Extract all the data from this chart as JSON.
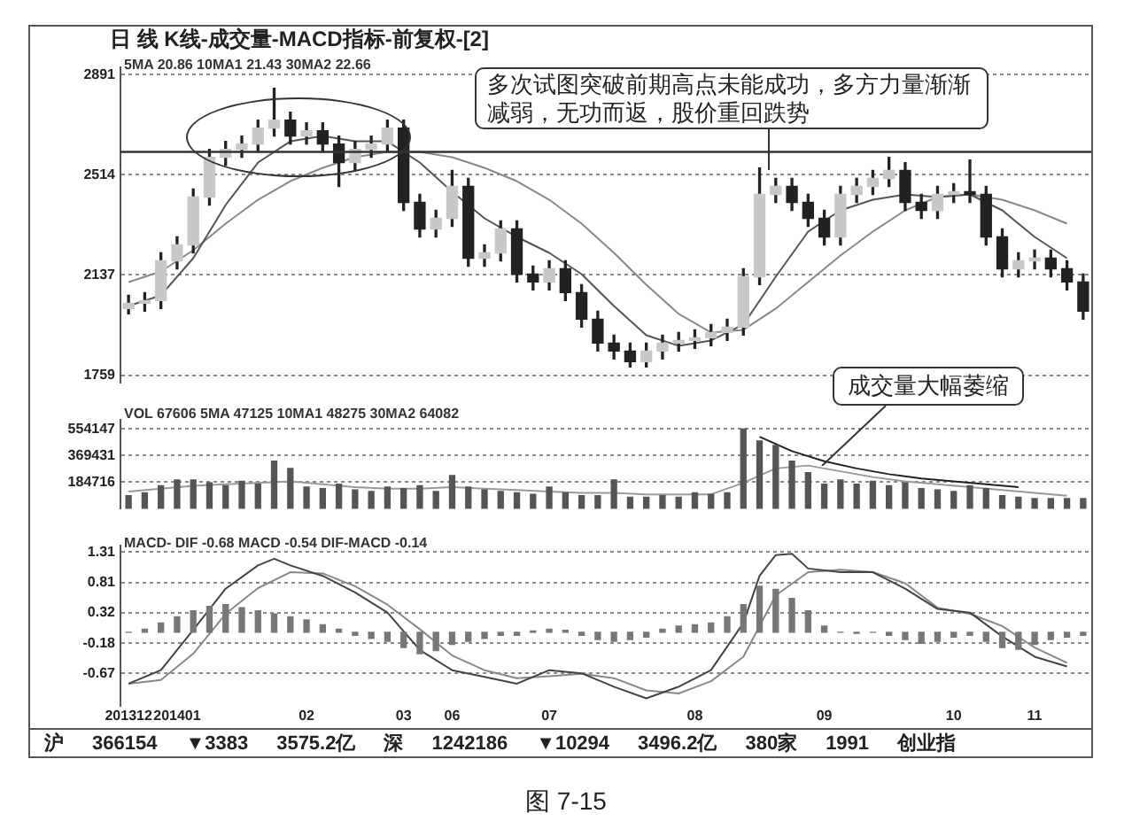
{
  "chart_data": [
    {
      "type": "candlestick",
      "title": "日 线 K线-成交量-MACD指标-前复权-[2]",
      "subtitle": "5MA 20.86 10MA1 21.43 30MA2 22.66",
      "categories": [
        "201312",
        null,
        null,
        "201401",
        null,
        null,
        null,
        null,
        null,
        null,
        null,
        "02",
        null,
        null,
        null,
        null,
        null,
        "03",
        null,
        null,
        "06",
        null,
        null,
        null,
        null,
        null,
        "07",
        null,
        null,
        null,
        null,
        null,
        null,
        null,
        null,
        "08",
        null,
        null,
        null,
        null,
        null,
        null,
        null,
        "09",
        null,
        null,
        null,
        null,
        null,
        null,
        null,
        "10",
        null,
        null,
        null,
        null,
        "11",
        null,
        null,
        null
      ],
      "ohlc": [
        [
          2010,
          2060,
          1990,
          2030
        ],
        [
          2030,
          2070,
          2000,
          2040
        ],
        [
          2040,
          2220,
          2010,
          2190
        ],
        [
          2190,
          2280,
          2160,
          2250
        ],
        [
          2250,
          2460,
          2220,
          2430
        ],
        [
          2430,
          2610,
          2400,
          2580
        ],
        [
          2580,
          2640,
          2550,
          2610
        ],
        [
          2610,
          2660,
          2580,
          2630
        ],
        [
          2630,
          2720,
          2600,
          2690
        ],
        [
          2690,
          2840,
          2660,
          2720
        ],
        [
          2720,
          2750,
          2630,
          2660
        ],
        [
          2660,
          2710,
          2630,
          2680
        ],
        [
          2680,
          2710,
          2600,
          2630
        ],
        [
          2630,
          2660,
          2470,
          2560
        ],
        [
          2560,
          2640,
          2530,
          2610
        ],
        [
          2610,
          2660,
          2580,
          2630
        ],
        [
          2630,
          2720,
          2600,
          2690
        ],
        [
          2690,
          2720,
          2380,
          2410
        ],
        [
          2410,
          2440,
          2280,
          2310
        ],
        [
          2310,
          2380,
          2280,
          2350
        ],
        [
          2350,
          2530,
          2320,
          2470
        ],
        [
          2470,
          2500,
          2170,
          2200
        ],
        [
          2200,
          2250,
          2170,
          2220
        ],
        [
          2220,
          2340,
          2190,
          2310
        ],
        [
          2310,
          2340,
          2110,
          2140
        ],
        [
          2140,
          2170,
          2080,
          2110
        ],
        [
          2110,
          2190,
          2080,
          2160
        ],
        [
          2160,
          2190,
          2040,
          2070
        ],
        [
          2070,
          2100,
          1940,
          1970
        ],
        [
          1970,
          2000,
          1850,
          1880
        ],
        [
          1880,
          1910,
          1820,
          1850
        ],
        [
          1850,
          1880,
          1790,
          1810
        ],
        [
          1810,
          1880,
          1790,
          1850
        ],
        [
          1850,
          1910,
          1820,
          1880
        ],
        [
          1880,
          1920,
          1850,
          1890
        ],
        [
          1890,
          1930,
          1860,
          1900
        ],
        [
          1900,
          1950,
          1870,
          1920
        ],
        [
          1920,
          1970,
          1890,
          1940
        ],
        [
          1940,
          2160,
          1910,
          2130
        ],
        [
          2130,
          2540,
          2100,
          2440
        ],
        [
          2440,
          2500,
          2410,
          2470
        ],
        [
          2470,
          2500,
          2380,
          2410
        ],
        [
          2410,
          2440,
          2320,
          2350
        ],
        [
          2350,
          2380,
          2250,
          2280
        ],
        [
          2280,
          2470,
          2250,
          2440
        ],
        [
          2440,
          2500,
          2410,
          2470
        ],
        [
          2470,
          2530,
          2440,
          2500
        ],
        [
          2500,
          2580,
          2470,
          2530
        ],
        [
          2530,
          2560,
          2380,
          2410
        ],
        [
          2410,
          2440,
          2350,
          2380
        ],
        [
          2380,
          2470,
          2350,
          2440
        ],
        [
          2440,
          2480,
          2410,
          2450
        ],
        [
          2450,
          2570,
          2410,
          2440
        ],
        [
          2440,
          2470,
          2250,
          2280
        ],
        [
          2280,
          2310,
          2130,
          2160
        ],
        [
          2160,
          2220,
          2130,
          2190
        ],
        [
          2190,
          2230,
          2160,
          2200
        ],
        [
          2200,
          2230,
          2130,
          2160
        ],
        [
          2160,
          2190,
          2080,
          2110
        ],
        [
          2110,
          2140,
          1970,
          2000
        ]
      ],
      "series": [
        {
          "type": "line",
          "color": "#555555",
          "values": [
            2020,
            null,
            2060,
            null,
            2200,
            null,
            2400,
            null,
            2560,
            null,
            2640,
            null,
            2660,
            null,
            2640,
            null,
            2640,
            null,
            2560,
            null,
            2450,
            null,
            2350,
            null,
            2280,
            null,
            2220,
            null,
            2140,
            null,
            2020,
            null,
            1910,
            null,
            1870,
            null,
            1890,
            null,
            1950,
            null,
            2130,
            null,
            2300,
            null,
            2380,
            null,
            2420,
            null,
            2440,
            null,
            2430,
            null,
            2440,
            null,
            2380,
            null,
            2280,
            null,
            2200,
            null
          ]
        },
        {
          "type": "line",
          "color": "#888888",
          "values": [
            2110,
            null,
            2150,
            null,
            2230,
            null,
            2330,
            null,
            2420,
            null,
            2490,
            null,
            2540,
            null,
            2580,
            null,
            2600,
            null,
            2600,
            null,
            2580,
            null,
            2540,
            null,
            2490,
            null,
            2420,
            null,
            2330,
            null,
            2220,
            null,
            2100,
            null,
            1990,
            null,
            1920,
            null,
            1930,
            null,
            2010,
            null,
            2110,
            null,
            2210,
            null,
            2300,
            null,
            2380,
            null,
            2430,
            null,
            2440,
            null,
            2420,
            null,
            2380,
            null,
            2330,
            null
          ]
        }
      ],
      "ylim": [
        1730,
        2920
      ],
      "yticks": [
        1759,
        2137,
        2514,
        2891
      ],
      "grid": "y",
      "tick_labels": "y",
      "ref_lines": [
        {
          "axis": "y",
          "value": 2600,
          "color": "#333333"
        }
      ],
      "annotations": [
        "多次试图突破前期高点未能成功，多方力量渐渐减弱，无功而返，股价重回跌势",
        "图 7-15"
      ]
    },
    {
      "type": "bar",
      "subtitle": "VOL 67606 5MA 47125 10MA1 48275 30MA2 64082",
      "categories": [
        "201312",
        null,
        null,
        "201401",
        null,
        null,
        null,
        null,
        null,
        null,
        null,
        "02",
        null,
        null,
        null,
        null,
        null,
        "03",
        null,
        null,
        "06",
        null,
        null,
        null,
        null,
        null,
        "07",
        null,
        null,
        null,
        null,
        null,
        null,
        null,
        null,
        "08",
        null,
        null,
        null,
        null,
        null,
        null,
        null,
        "09",
        null,
        null,
        null,
        null,
        null,
        null,
        null,
        "10",
        null,
        null,
        null,
        null,
        "11",
        null,
        null,
        null
      ],
      "series": [
        {
          "type": "bar",
          "color": "#555555",
          "values": [
            90000,
            110000,
            160000,
            200000,
            200000,
            180000,
            160000,
            190000,
            170000,
            330000,
            280000,
            150000,
            140000,
            170000,
            130000,
            120000,
            150000,
            140000,
            160000,
            120000,
            230000,
            150000,
            130000,
            120000,
            110000,
            100000,
            150000,
            110000,
            90000,
            90000,
            200000,
            80000,
            80000,
            90000,
            80000,
            110000,
            100000,
            110000,
            554147,
            470000,
            440000,
            330000,
            250000,
            170000,
            200000,
            170000,
            190000,
            160000,
            180000,
            140000,
            130000,
            120000,
            160000,
            140000,
            90000,
            80000,
            70000,
            70000,
            70000,
            70000
          ]
        },
        {
          "type": "line",
          "color": "#999999",
          "values": [
            120000,
            null,
            140000,
            null,
            160000,
            null,
            170000,
            null,
            180000,
            null,
            190000,
            null,
            170000,
            null,
            150000,
            null,
            140000,
            null,
            140000,
            null,
            150000,
            null,
            140000,
            null,
            130000,
            null,
            120000,
            null,
            110000,
            null,
            110000,
            null,
            100000,
            null,
            100000,
            null,
            100000,
            null,
            180000,
            null,
            280000,
            null,
            300000,
            null,
            260000,
            null,
            220000,
            null,
            190000,
            null,
            170000,
            null,
            150000,
            null,
            130000,
            null,
            110000,
            null,
            90000,
            null
          ]
        },
        {
          "type": "line",
          "color": "#222222",
          "values": [
            null,
            null,
            null,
            null,
            null,
            null,
            null,
            null,
            null,
            null,
            null,
            null,
            null,
            null,
            null,
            null,
            null,
            null,
            null,
            null,
            null,
            null,
            null,
            null,
            null,
            null,
            null,
            null,
            null,
            null,
            null,
            null,
            null,
            null,
            null,
            null,
            null,
            null,
            null,
            500000,
            null,
            400000,
            null,
            330000,
            null,
            280000,
            null,
            240000,
            null,
            210000,
            null,
            190000,
            null,
            170000,
            null,
            150000,
            null,
            null,
            null,
            null
          ]
        }
      ],
      "ylim": [
        0,
        620000
      ],
      "yticks": [
        184716,
        369431,
        554147
      ],
      "grid": "y",
      "tick_labels": "y",
      "annotations": [
        "成交量大幅萎缩"
      ]
    },
    {
      "type": "bar",
      "subtitle": "MACD- DIF -0.68 MACD -0.54 DIF-MACD -0.14",
      "categories": [
        "201312",
        null,
        null,
        "201401",
        null,
        null,
        null,
        null,
        null,
        null,
        null,
        "02",
        null,
        null,
        null,
        null,
        null,
        "03",
        null,
        null,
        "06",
        null,
        null,
        null,
        null,
        null,
        "07",
        null,
        null,
        null,
        null,
        null,
        null,
        null,
        null,
        "08",
        null,
        null,
        null,
        null,
        null,
        null,
        null,
        "09",
        null,
        null,
        null,
        null,
        null,
        null,
        null,
        "10",
        null,
        null,
        null,
        null,
        "11",
        null,
        null,
        null
      ],
      "series": [
        {
          "type": "bar",
          "color": "#777777",
          "values": [
            0,
            0.05,
            0.15,
            0.25,
            0.35,
            0.42,
            0.45,
            0.4,
            0.35,
            0.3,
            0.25,
            0.2,
            0.12,
            0.05,
            -0.05,
            -0.1,
            -0.15,
            -0.25,
            -0.35,
            -0.3,
            -0.2,
            -0.15,
            -0.1,
            -0.05,
            -0.05,
            0.02,
            0.05,
            0.03,
            -0.05,
            -0.12,
            -0.15,
            -0.12,
            -0.08,
            0.05,
            0.1,
            0.12,
            0.15,
            0.25,
            0.45,
            0.75,
            0.7,
            0.55,
            0.35,
            0.1,
            0,
            -0.02,
            0,
            -0.05,
            -0.12,
            -0.18,
            -0.15,
            -0.08,
            -0.05,
            -0.15,
            -0.25,
            -0.28,
            -0.2,
            -0.12,
            -0.08,
            -0.05
          ]
        },
        {
          "type": "line",
          "color": "#444444",
          "values": [
            -0.84,
            null,
            -0.62,
            null,
            0.04,
            null,
            0.71,
            null,
            1.09,
            1.2,
            1.09,
            null,
            0.92,
            null,
            0.65,
            null,
            0.32,
            null,
            -0.29,
            null,
            -0.62,
            null,
            -0.73,
            null,
            -0.84,
            null,
            -0.62,
            null,
            -0.67,
            null,
            -0.89,
            null,
            -1.08,
            null,
            -0.89,
            null,
            -0.62,
            null,
            0.15,
            0.92,
            1.26,
            1.28,
            1.04,
            null,
            0.98,
            null,
            0.98,
            null,
            0.71,
            null,
            0.38,
            null,
            0.32,
            null,
            -0.07,
            null,
            -0.4,
            null,
            -0.56,
            null
          ]
        },
        {
          "type": "line",
          "color": "#888888",
          "values": [
            -0.84,
            null,
            -0.78,
            null,
            -0.35,
            null,
            0.3,
            null,
            0.72,
            null,
            0.98,
            null,
            0.96,
            null,
            0.75,
            null,
            0.45,
            null,
            0.05,
            null,
            -0.38,
            null,
            -0.62,
            null,
            -0.75,
            null,
            -0.72,
            null,
            -0.68,
            null,
            -0.75,
            null,
            -0.95,
            null,
            -1,
            null,
            -0.8,
            null,
            -0.4,
            null,
            0.6,
            null,
            0.98,
            null,
            1.02,
            null,
            0.98,
            null,
            0.8,
            null,
            0.4,
            null,
            0.3,
            null,
            0.1,
            null,
            -0.25,
            null,
            -0.5,
            null
          ]
        }
      ],
      "ylim": [
        -1.2,
        1.42
      ],
      "yticks": [
        1.31,
        0.81,
        0.32,
        -0.18,
        -0.67
      ],
      "grid": "y"
    },
    {
      "type": "other",
      "annotations": [
        "沪",
        "366154",
        "▼3383",
        "3575.2亿",
        "深",
        "1242186",
        "▼10294",
        "3496.2亿",
        "380家",
        "1991",
        "创业指"
      ]
    }
  ]
}
